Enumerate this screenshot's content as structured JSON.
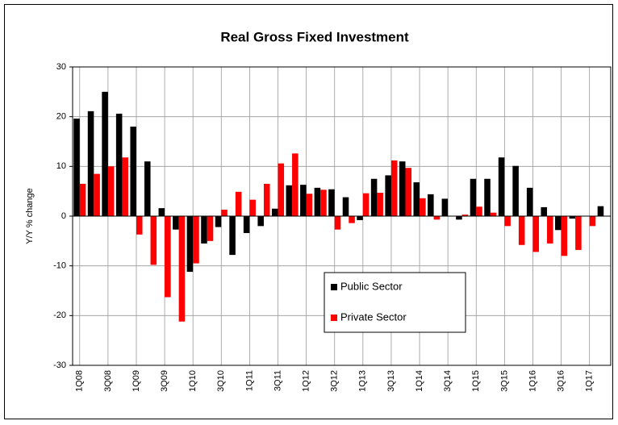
{
  "chart_data": {
    "type": "bar",
    "title": "Real Gross Fixed Investment",
    "y_label": "Y/Y % change",
    "categories": [
      "1Q08",
      null,
      "3Q08",
      null,
      "1Q09",
      null,
      "3Q09",
      null,
      "1Q10",
      null,
      "3Q10",
      null,
      "1Q11",
      null,
      "3Q11",
      null,
      "1Q12",
      null,
      "3Q12",
      null,
      "1Q13",
      null,
      "3Q13",
      null,
      "1Q14",
      null,
      "3Q14",
      null,
      "1Q15",
      null,
      "3Q15",
      null,
      "1Q16",
      null,
      "3Q16",
      null,
      "1Q17",
      null
    ],
    "series": [
      {
        "name": "Public Sector",
        "color": "#000000",
        "values": [
          19.6,
          21.1,
          25.0,
          20.6,
          18.0,
          11.0,
          1.6,
          -2.7,
          -11.2,
          -5.5,
          -2.2,
          -7.8,
          -3.4,
          -2.0,
          1.5,
          6.2,
          6.3,
          5.7,
          5.4,
          3.8,
          -0.8,
          7.5,
          8.2,
          11.0,
          6.8,
          4.4,
          3.5,
          -0.7,
          7.5,
          7.5,
          11.8,
          10.1,
          5.7,
          1.8,
          -2.8,
          -0.5,
          0,
          2.0
        ]
      },
      {
        "name": "Private Sector",
        "color": "#ff0000",
        "values": [
          6.5,
          8.5,
          10.0,
          11.8,
          -3.7,
          -9.8,
          -16.3,
          -21.2,
          -9.5,
          -5.0,
          1.3,
          4.9,
          3.3,
          6.5,
          10.6,
          12.6,
          4.5,
          5.3,
          -2.7,
          -1.4,
          4.6,
          4.7,
          11.2,
          9.7,
          3.6,
          -0.7,
          0,
          0.3,
          1.9,
          0.7,
          -2.0,
          -5.8,
          -7.2,
          -5.5,
          -8.0,
          -6.8,
          -2.0,
          null
        ]
      }
    ],
    "ylim": [
      -30,
      30
    ],
    "yticks": [
      -30,
      -20,
      -10,
      0,
      10,
      20,
      30
    ],
    "grid": true,
    "legend": "bottom"
  }
}
